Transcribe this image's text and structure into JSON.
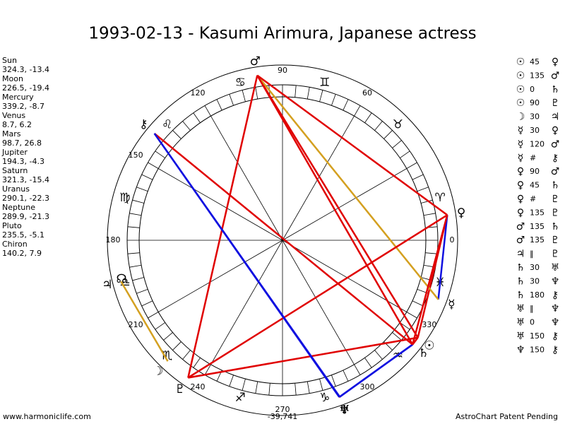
{
  "header": {
    "title": "1993-02-13 - Kasumi Arimura, Japanese actress"
  },
  "planets": [
    {
      "name": "Sun",
      "glyph": "☉",
      "coords": "324.3, -13.4"
    },
    {
      "name": "Moon",
      "glyph": "☽",
      "coords": "226.5, -19.4"
    },
    {
      "name": "Mercury",
      "glyph": "☿",
      "coords": "339.2, -8.7"
    },
    {
      "name": "Venus",
      "glyph": "♀",
      "coords": "8.7, 6.2"
    },
    {
      "name": "Mars",
      "glyph": "♂",
      "coords": "98.7, 26.8"
    },
    {
      "name": "Jupiter",
      "glyph": "♃",
      "coords": "194.3, -4.3"
    },
    {
      "name": "Saturn",
      "glyph": "♄",
      "coords": "321.3, -15.4"
    },
    {
      "name": "Uranus",
      "glyph": "♅",
      "coords": "290.1, -22.3"
    },
    {
      "name": "Neptune",
      "glyph": "♆",
      "coords": "289.9, -21.3"
    },
    {
      "name": "Pluto",
      "glyph": "♇",
      "coords": "235.5, -5.1"
    },
    {
      "name": "Chiron",
      "glyph": "⚷",
      "coords": "140.2, 7.9"
    }
  ],
  "node": "☊",
  "zodiac": [
    "♈",
    "♉",
    "♊",
    "♋",
    "♌",
    "♍",
    "♎",
    "♏",
    "♐",
    "♑",
    "♒",
    "♓"
  ],
  "degree_labels": [
    0,
    60,
    90,
    120,
    150,
    180,
    210,
    240,
    270,
    300,
    330
  ],
  "aspects": [
    {
      "from": "☉",
      "aspect": "45",
      "to": "♀",
      "color": "#e00000"
    },
    {
      "from": "☉",
      "aspect": "135",
      "to": "♂",
      "color": "#e00000"
    },
    {
      "from": "☉",
      "aspect": "0",
      "to": "♄",
      "color": "#e00000"
    },
    {
      "from": "☉",
      "aspect": "90",
      "to": "♇",
      "color": "#e00000"
    },
    {
      "from": "☽",
      "aspect": "30",
      "to": "♃",
      "color": "#d4a020"
    },
    {
      "from": "☿",
      "aspect": "30",
      "to": "♀",
      "color": "#1010e0"
    },
    {
      "from": "☿",
      "aspect": "120",
      "to": "♂",
      "color": "#d4a020"
    },
    {
      "from": "☿",
      "aspect": "#",
      "to": "⚷"
    },
    {
      "from": "♀",
      "aspect": "90",
      "to": "♂",
      "color": "#e00000"
    },
    {
      "from": "♀",
      "aspect": "45",
      "to": "♄",
      "color": "#e00000"
    },
    {
      "from": "♀",
      "aspect": "#",
      "to": "♇"
    },
    {
      "from": "♀",
      "aspect": "135",
      "to": "♇",
      "color": "#e00000"
    },
    {
      "from": "♂",
      "aspect": "135",
      "to": "♄",
      "color": "#e00000"
    },
    {
      "from": "♂",
      "aspect": "135",
      "to": "♇",
      "color": "#e00000"
    },
    {
      "from": "♃",
      "aspect": "‖",
      "to": "♇"
    },
    {
      "from": "♄",
      "aspect": "30",
      "to": "♅",
      "color": "#1010e0"
    },
    {
      "from": "♄",
      "aspect": "30",
      "to": "♆",
      "color": "#1010e0"
    },
    {
      "from": "♄",
      "aspect": "180",
      "to": "⚷",
      "color": "#e00000"
    },
    {
      "from": "♅",
      "aspect": "‖",
      "to": "♆"
    },
    {
      "from": "♅",
      "aspect": "0",
      "to": "♆",
      "color": "#e00000"
    },
    {
      "from": "♅",
      "aspect": "150",
      "to": "⚷",
      "color": "#1010e0"
    },
    {
      "from": "♆",
      "aspect": "150",
      "to": "⚷",
      "color": "#1010e0"
    }
  ],
  "footer": {
    "left": "www.harmoniclife.com",
    "center": "-39,741",
    "right": "AstroChart Patent Pending"
  }
}
